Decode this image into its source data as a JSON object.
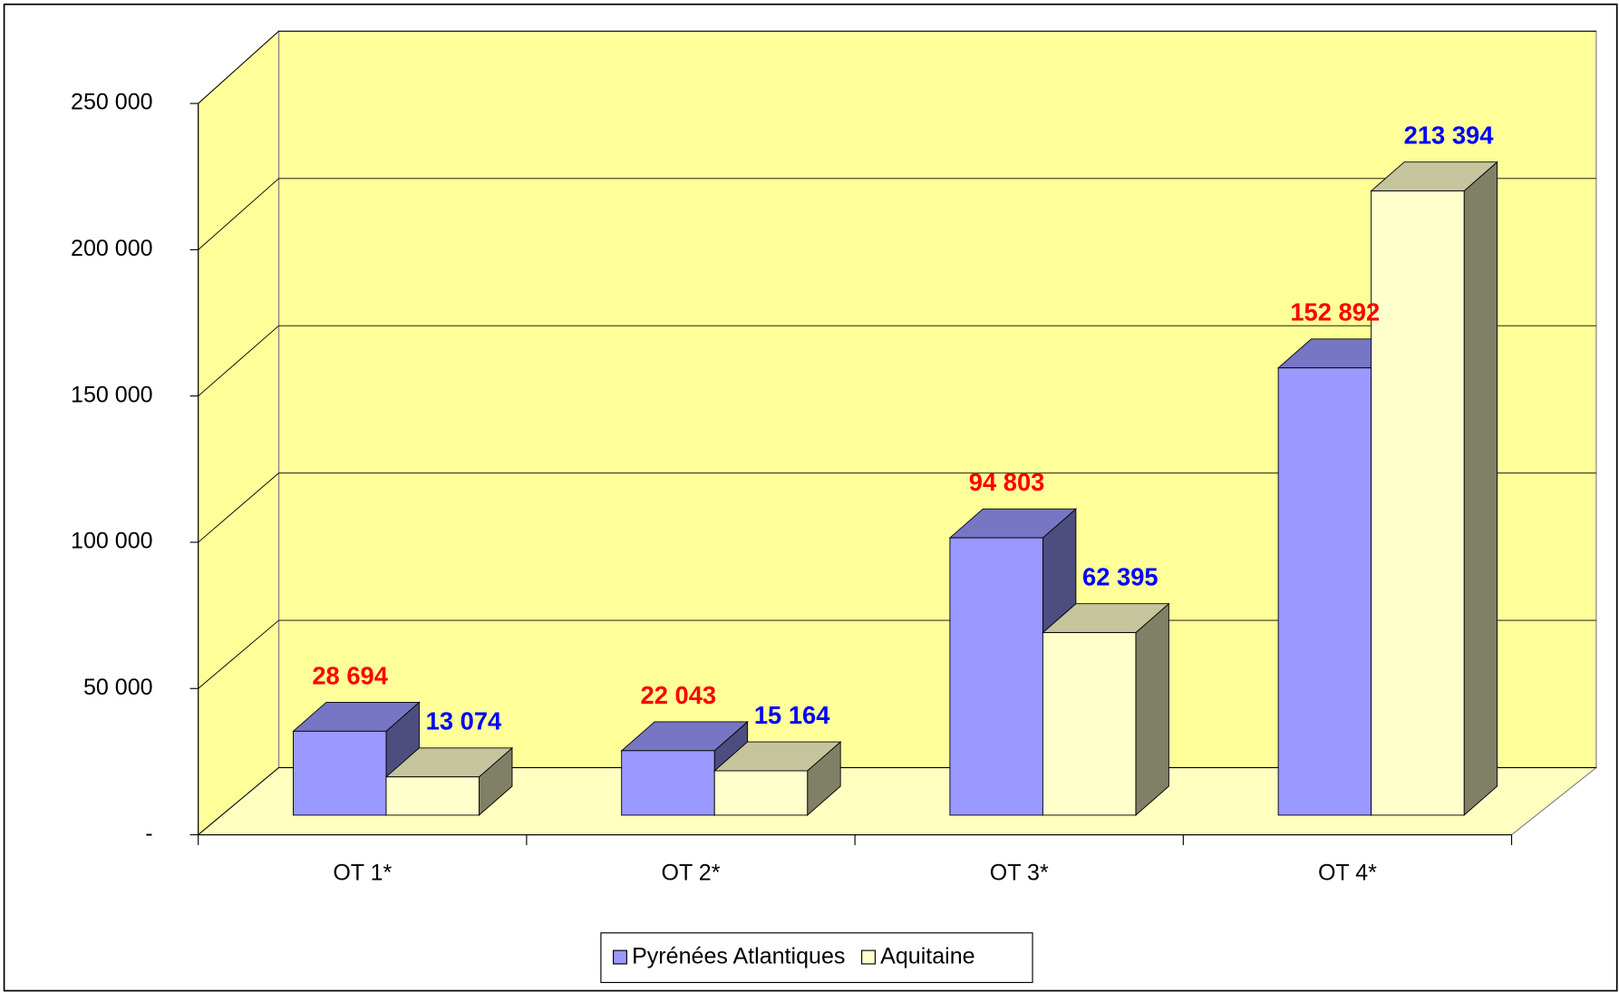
{
  "chart_data": {
    "type": "bar3d",
    "categories": [
      "OT 1*",
      "OT 2*",
      "OT 3*",
      "OT 4*"
    ],
    "series": [
      {
        "name": "Pyrénées Atlantiques",
        "color": "#9999ff",
        "label_color": "#ff0000",
        "values": [
          28694,
          22043,
          94803,
          152892
        ],
        "value_labels": [
          "28 694",
          "22 043",
          "94 803",
          "152 892"
        ]
      },
      {
        "name": "Aquitaine",
        "color": "#ffffcc",
        "label_color": "#0000ff",
        "values": [
          13074,
          15164,
          62395,
          213394
        ],
        "value_labels": [
          "13 074",
          "15 164",
          "62 395",
          "213 394"
        ]
      }
    ],
    "ylim": [
      0,
      250000
    ],
    "yticks": [
      {
        "value": 0,
        "label": "-"
      },
      {
        "value": 50000,
        "label": "50 000"
      },
      {
        "value": 100000,
        "label": "100 000"
      },
      {
        "value": 150000,
        "label": "150 000"
      },
      {
        "value": 200000,
        "label": "200 000"
      },
      {
        "value": 250000,
        "label": "250 000"
      }
    ],
    "grid": true,
    "legend": "bottom"
  }
}
